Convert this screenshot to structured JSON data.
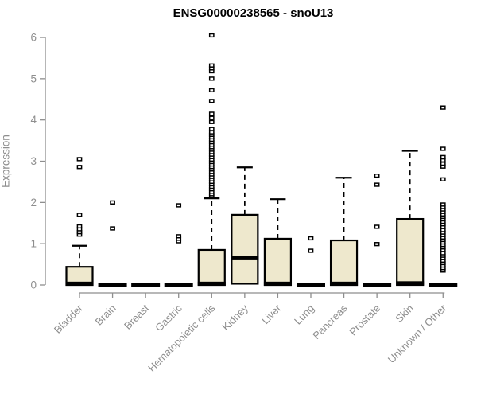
{
  "colors": {
    "box_fill": "#EEE8CD",
    "box_stroke": "#000000",
    "median": "#000000",
    "axis": "#8E8E8E",
    "tick_label": "#8E8E8E",
    "title": "#000000",
    "outlier_fill": "#FFFFFF",
    "background": "#FFFFFF"
  },
  "chart_data": {
    "type": "boxplot",
    "title": "ENSG00000238565 - snoU13",
    "xlabel": "",
    "ylabel": "Expression",
    "ylim": [
      0,
      6
    ],
    "yticks": [
      0,
      1,
      2,
      3,
      4,
      5,
      6
    ],
    "grid": false,
    "legend": "none",
    "categories": [
      "Bladder",
      "Brain",
      "Breast",
      "Gastric",
      "Hematopoietic cells",
      "Kidney",
      "Liver",
      "Lung",
      "Pancreas",
      "Prostate",
      "Skin",
      "Unknown / Other"
    ],
    "series": [
      {
        "name": "Bladder",
        "whisker_low": 0,
        "q1": 0,
        "median": 0.03,
        "q3": 0.44,
        "whisker_high": 0.95,
        "outliers": [
          1.22,
          1.28,
          1.35,
          1.42,
          1.7,
          2.86,
          3.05
        ]
      },
      {
        "name": "Brain",
        "whisker_low": 0,
        "q1": 0,
        "median": 0,
        "q3": 0,
        "whisker_high": 0,
        "outliers": [
          1.37,
          2.0
        ]
      },
      {
        "name": "Breast",
        "whisker_low": 0,
        "q1": 0,
        "median": 0,
        "q3": 0,
        "whisker_high": 0,
        "outliers": []
      },
      {
        "name": "Gastric",
        "whisker_low": 0,
        "q1": 0,
        "median": 0,
        "q3": 0,
        "whisker_high": 0,
        "outliers": [
          1.06,
          1.12,
          1.18,
          1.93
        ]
      },
      {
        "name": "Hematopoietic cells",
        "whisker_low": 0,
        "q1": 0,
        "median": 0.03,
        "q3": 0.85,
        "whisker_high": 2.1,
        "outliers": [
          2.15,
          2.2,
          2.26,
          2.32,
          2.38,
          2.44,
          2.5,
          2.56,
          2.62,
          2.68,
          2.74,
          2.8,
          2.86,
          2.92,
          2.98,
          3.04,
          3.1,
          3.16,
          3.22,
          3.28,
          3.34,
          3.4,
          3.46,
          3.52,
          3.58,
          3.64,
          3.7,
          3.78,
          3.95,
          4.05,
          4.15,
          4.46,
          4.72,
          5.0,
          5.18,
          5.25,
          5.32,
          6.05
        ]
      },
      {
        "name": "Kidney",
        "whisker_low": 0,
        "q1": 0.03,
        "median": 0.65,
        "q3": 1.7,
        "whisker_high": 2.85,
        "outliers": []
      },
      {
        "name": "Liver",
        "whisker_low": 0,
        "q1": 0,
        "median": 0.03,
        "q3": 1.12,
        "whisker_high": 2.08,
        "outliers": []
      },
      {
        "name": "Lung",
        "whisker_low": 0,
        "q1": 0,
        "median": 0,
        "q3": 0,
        "whisker_high": 0,
        "outliers": [
          0.83,
          1.13
        ]
      },
      {
        "name": "Pancreas",
        "whisker_low": 0,
        "q1": 0,
        "median": 0.03,
        "q3": 1.08,
        "whisker_high": 2.6,
        "outliers": []
      },
      {
        "name": "Prostate",
        "whisker_low": 0,
        "q1": 0,
        "median": 0,
        "q3": 0,
        "whisker_high": 0,
        "outliers": [
          0.99,
          1.41,
          2.43,
          2.65
        ]
      },
      {
        "name": "Skin",
        "whisker_low": 0,
        "q1": 0,
        "median": 0.04,
        "q3": 1.6,
        "whisker_high": 3.25,
        "outliers": []
      },
      {
        "name": "Unknown / Other",
        "whisker_low": 0,
        "q1": 0,
        "median": 0,
        "q3": 0,
        "whisker_high": 0,
        "outliers": [
          0.35,
          0.41,
          0.47,
          0.53,
          0.59,
          0.65,
          0.71,
          0.77,
          0.85,
          0.91,
          0.97,
          1.03,
          1.09,
          1.15,
          1.21,
          1.27,
          1.33,
          1.41,
          1.47,
          1.53,
          1.59,
          1.65,
          1.71,
          1.77,
          1.83,
          1.89,
          1.95,
          2.56,
          2.87,
          2.94,
          3.02,
          3.1,
          3.3,
          4.3
        ]
      }
    ]
  }
}
